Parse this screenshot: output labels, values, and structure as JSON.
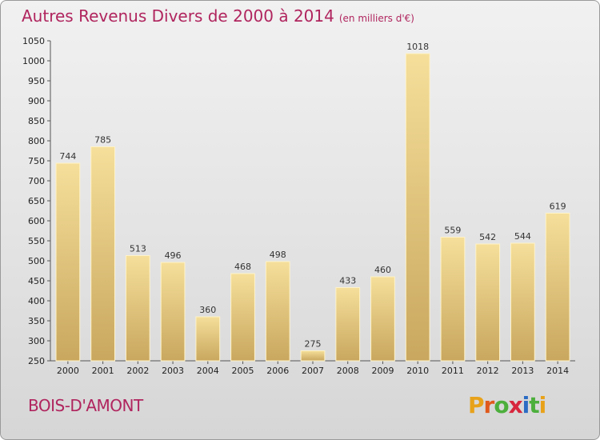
{
  "header": {
    "title": "Autres Revenus Divers de 2000 à 2014",
    "unit": "(en milliers d'€)"
  },
  "footer": {
    "place": "BOIS-D'AMONT",
    "logo_text": "Proxiti",
    "logo_colors": [
      "#e8a21a",
      "#e05a1c",
      "#4caf3c",
      "#d7263d",
      "#2b6cc4",
      "#4caf3c",
      "#e8a21a"
    ]
  },
  "colors": {
    "bar_top": "#f5df9a",
    "bar_bottom": "#c9a75e",
    "bar_edge": "#fff3c8",
    "title": "#b0255e"
  },
  "chart_data": {
    "type": "bar",
    "title": "Autres Revenus Divers de 2000 à 2014",
    "subtitle": "(en milliers d'€)",
    "categories": [
      "2000",
      "2001",
      "2002",
      "2003",
      "2004",
      "2005",
      "2006",
      "2007",
      "2008",
      "2009",
      "2010",
      "2011",
      "2012",
      "2013",
      "2014"
    ],
    "values": [
      744,
      785,
      513,
      496,
      360,
      468,
      498,
      275,
      433,
      460,
      1018,
      559,
      542,
      544,
      619
    ],
    "ylim": [
      250,
      1050
    ],
    "yticks": [
      250,
      300,
      350,
      400,
      450,
      500,
      550,
      600,
      650,
      700,
      750,
      800,
      850,
      900,
      950,
      1000,
      1050
    ],
    "grid": false,
    "xlabel": "",
    "ylabel": ""
  }
}
